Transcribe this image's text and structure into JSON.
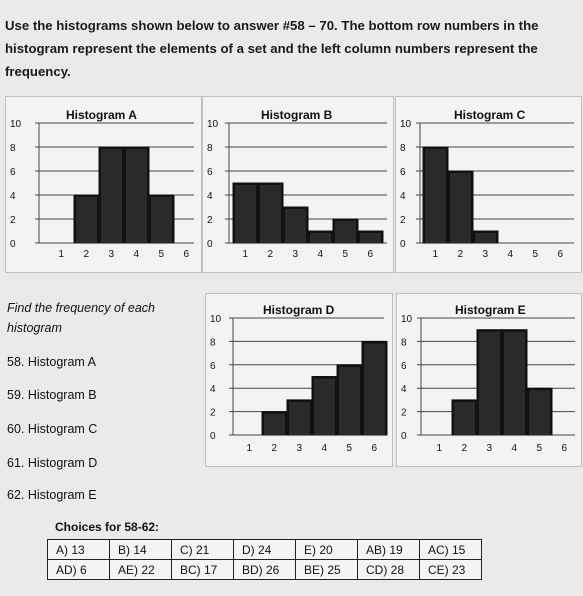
{
  "instructions": "Use the histograms shown below to answer #58 – 70. The bottom row numbers in the histogram represent the elements of a set and the left column numbers represent the frequency.",
  "y_ticks": [
    "0",
    "2",
    "4",
    "6",
    "8",
    "10"
  ],
  "x_ticks": [
    "1",
    "2",
    "3",
    "4",
    "5",
    "6"
  ],
  "histograms": [
    {
      "title": "Histogram A",
      "values": [
        0,
        4,
        8,
        8,
        4,
        0
      ]
    },
    {
      "title": "Histogram B",
      "values": [
        5,
        5,
        3,
        1,
        2,
        1
      ]
    },
    {
      "title": "Histogram C",
      "values": [
        8,
        6,
        1,
        0,
        0,
        0
      ]
    },
    {
      "title": "Histogram D",
      "values": [
        0,
        2,
        3,
        5,
        6,
        8
      ]
    },
    {
      "title": "Histogram E",
      "values": [
        0,
        3,
        9,
        9,
        4,
        0
      ]
    }
  ],
  "questions_heading": "Find the frequency of each histogram",
  "questions": [
    "58. Histogram A",
    "59. Histogram B",
    "60. Histogram C",
    "61. Histogram D",
    "62. Histogram E"
  ],
  "choices_title": "Choices for 58-62:",
  "choices": [
    [
      "A) 13",
      "B) 14",
      "C) 21",
      "D) 24",
      "E) 20",
      "AB) 19",
      "AC) 15"
    ],
    [
      "AD) 6",
      "AE) 22",
      "BC) 17",
      "BD) 26",
      "BE) 25",
      "CD) 28",
      "CE) 23"
    ]
  ],
  "chart_data": [
    {
      "type": "bar",
      "title": "Histogram A",
      "categories": [
        "1",
        "2",
        "3",
        "4",
        "5",
        "6"
      ],
      "values": [
        0,
        4,
        8,
        8,
        4,
        0
      ],
      "ylim": [
        0,
        10
      ]
    },
    {
      "type": "bar",
      "title": "Histogram B",
      "categories": [
        "1",
        "2",
        "3",
        "4",
        "5",
        "6"
      ],
      "values": [
        5,
        5,
        3,
        1,
        2,
        1
      ],
      "ylim": [
        0,
        10
      ]
    },
    {
      "type": "bar",
      "title": "Histogram C",
      "categories": [
        "1",
        "2",
        "3",
        "4",
        "5",
        "6"
      ],
      "values": [
        8,
        6,
        1,
        0,
        0,
        0
      ],
      "ylim": [
        0,
        10
      ]
    },
    {
      "type": "bar",
      "title": "Histogram D",
      "categories": [
        "1",
        "2",
        "3",
        "4",
        "5",
        "6"
      ],
      "values": [
        0,
        2,
        3,
        5,
        6,
        8
      ],
      "ylim": [
        0,
        10
      ]
    },
    {
      "type": "bar",
      "title": "Histogram E",
      "categories": [
        "1",
        "2",
        "3",
        "4",
        "5",
        "6"
      ],
      "values": [
        0,
        3,
        9,
        9,
        4,
        0
      ],
      "ylim": [
        0,
        10
      ]
    }
  ]
}
